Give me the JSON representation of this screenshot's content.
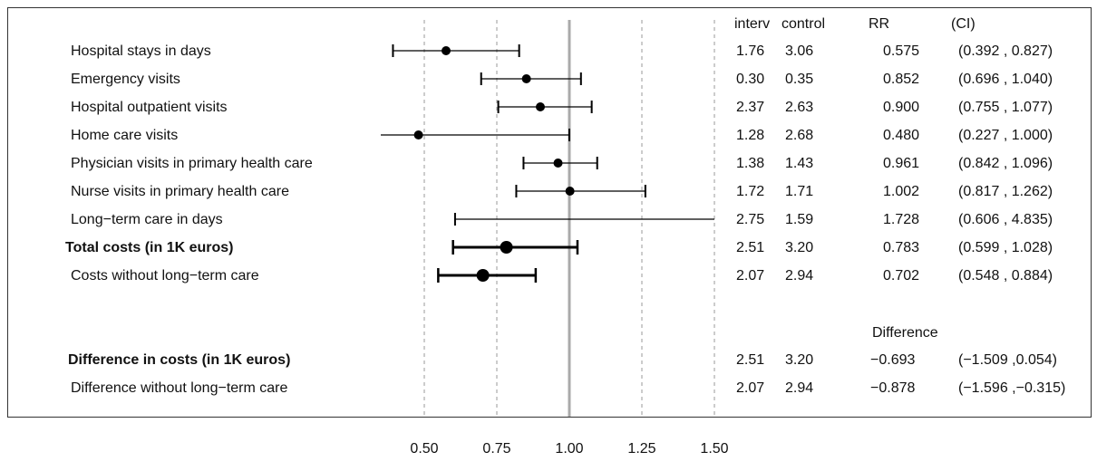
{
  "chart_data": {
    "type": "forest",
    "x_ticks": [
      0.5,
      0.75,
      1.0,
      1.25,
      1.5
    ],
    "x_tick_labels": [
      "0.50",
      "0.75",
      "1.00",
      "1.25",
      "1.50"
    ],
    "xlim": [
      0.35,
      1.6
    ],
    "reference_line": 1.0,
    "column_headers": {
      "interv": "interv",
      "control": "control",
      "rr": "RR",
      "ci": "(CI)",
      "difference": "Difference"
    },
    "rows": [
      {
        "label": "Hospital stays in days",
        "bold": false,
        "interv": "1.76",
        "control": "3.06",
        "est_text": "0.575",
        "ci_text": "(0.392 ,  0.827)",
        "est": 0.575,
        "low": 0.392,
        "high": 0.827,
        "weight": "normal"
      },
      {
        "label": "Emergency visits",
        "bold": false,
        "interv": "0.30",
        "control": "0.35",
        "est_text": "0.852",
        "ci_text": "(0.696 ,  1.040)",
        "est": 0.852,
        "low": 0.696,
        "high": 1.04,
        "weight": "normal"
      },
      {
        "label": "Hospital outpatient visits",
        "bold": false,
        "interv": "2.37",
        "control": "2.63",
        "est_text": "0.900",
        "ci_text": "(0.755 ,  1.077)",
        "est": 0.9,
        "low": 0.755,
        "high": 1.077,
        "weight": "normal"
      },
      {
        "label": "Home care visits",
        "bold": false,
        "interv": "1.28",
        "control": "2.68",
        "est_text": "0.480",
        "ci_text": "(0.227 ,  1.000)",
        "est": 0.48,
        "low": 0.227,
        "high": 1.0,
        "weight": "normal"
      },
      {
        "label": "Physician visits in primary health care",
        "bold": false,
        "interv": "1.38",
        "control": "1.43",
        "est_text": "0.961",
        "ci_text": "(0.842 ,  1.096)",
        "est": 0.961,
        "low": 0.842,
        "high": 1.096,
        "weight": "normal"
      },
      {
        "label": "Nurse visits in primary health care",
        "bold": false,
        "interv": "1.72",
        "control": "1.71",
        "est_text": "1.002",
        "ci_text": "(0.817 ,  1.262)",
        "est": 1.002,
        "low": 0.817,
        "high": 1.262,
        "weight": "normal"
      },
      {
        "label": "Long−term care in days",
        "bold": false,
        "interv": "2.75",
        "control": "1.59",
        "est_text": "1.728",
        "ci_text": "(0.606 ,  4.835)",
        "est": 1.728,
        "low": 0.606,
        "high": 4.835,
        "weight": "normal"
      },
      {
        "label": "Total costs (in 1K euros)",
        "bold": true,
        "interv": "2.51",
        "control": "3.20",
        "est_text": "0.783",
        "ci_text": "(0.599 ,  1.028)",
        "est": 0.783,
        "low": 0.599,
        "high": 1.028,
        "weight": "heavy"
      },
      {
        "label": "Costs without long−term care",
        "bold": false,
        "interv": "2.07",
        "control": "2.94",
        "est_text": "0.702",
        "ci_text": "(0.548 ,  0.884)",
        "est": 0.702,
        "low": 0.548,
        "high": 0.884,
        "weight": "heavy"
      }
    ],
    "difference_rows": [
      {
        "label": "Difference in costs (in 1K euros)",
        "bold": true,
        "interv": "2.51",
        "control": "3.20",
        "est_text": "−0.693",
        "ci_text": "(−1.509 ,0.054)"
      },
      {
        "label": "Difference without long−term care",
        "bold": false,
        "interv": "2.07",
        "control": "2.94",
        "est_text": "−0.878",
        "ci_text": "(−1.596 ,−0.315)"
      }
    ],
    "colors": {
      "reference_line": "#aaaaaa",
      "grid": "#999999",
      "marks": "#000000"
    }
  }
}
